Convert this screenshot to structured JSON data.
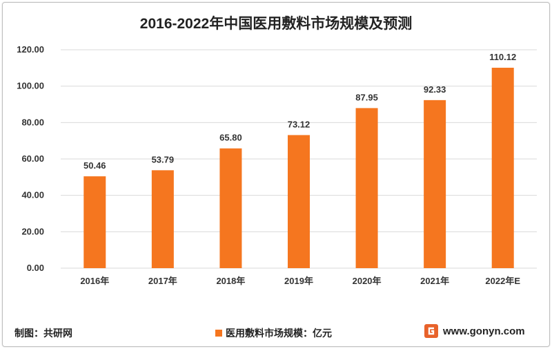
{
  "chart_data": {
    "type": "bar",
    "title": "2016-2022年中国医用敷料市场规模及预测",
    "categories": [
      "2016年",
      "2017年",
      "2018年",
      "2019年",
      "2020年",
      "2021年",
      "2022年E"
    ],
    "series": [
      {
        "name": "医用敷料市场规模：亿元",
        "values": [
          50.46,
          53.79,
          65.8,
          73.12,
          87.95,
          92.33,
          110.12
        ]
      }
    ],
    "data_labels": [
      "50.46",
      "53.79",
      "65.80",
      "73.12",
      "87.95",
      "92.33",
      "110.12"
    ],
    "ylim": [
      0,
      120
    ],
    "yticks": [
      "0.00",
      "20.00",
      "40.00",
      "60.00",
      "80.00",
      "100.00",
      "120.00"
    ],
    "ytick_values": [
      0,
      20,
      40,
      60,
      80,
      100,
      120
    ],
    "grid": true,
    "legend_position": "bottom",
    "bar_color": "#f5761f"
  },
  "footer": {
    "source": "制图：共研网",
    "legend_label": "医用敷料市场规模：亿元",
    "brand": "www.gonyn.com"
  },
  "colors": {
    "bar": "#f5761f",
    "grid": "#d9d9d9",
    "brand_icon": "#e8622a"
  }
}
